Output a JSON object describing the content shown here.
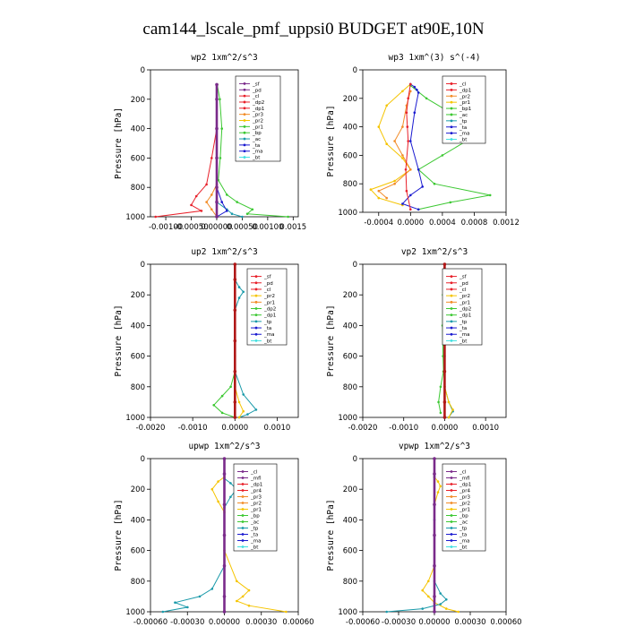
{
  "figure_title": "cam144_lscale_pmf_uppsi0  BUDGET at90E,10N",
  "colors": {
    "red": "#e8202a",
    "darkred": "#b01818",
    "purple": "#7a2a8a",
    "orange": "#f28c28",
    "yellow": "#f5c400",
    "green": "#3cc832",
    "blue": "#1a1ad0",
    "teal": "#1a9aaa",
    "cyan": "#40e0e0",
    "black": "#000000"
  },
  "chart_data": [
    {
      "type": "line",
      "title": "wp2   1xm^2/s^3",
      "ylabel": "Pressure [hPa]",
      "ylim": [
        1000,
        0
      ],
      "xlim": [
        -0.0013,
        0.0016
      ],
      "xticks": [
        -0.001,
        -0.0005,
        0.0,
        0.0005,
        0.001,
        0.0015
      ],
      "xtick_labels": [
        "-0.00100",
        "-0.00050",
        "0.00000",
        "0.00050",
        "0.00100",
        "0.0015"
      ],
      "yticks": [
        0,
        200,
        400,
        600,
        800,
        1000
      ],
      "legend": [
        "_sf",
        "_pd",
        "_cl",
        "_dp2",
        "_dp1",
        "_pr3",
        "_pr2",
        "_pr1",
        "_bp",
        "_ac",
        "_ta",
        "_ma",
        "_bt"
      ],
      "legend_colors": [
        "purple",
        "purple",
        "red",
        "red",
        "red",
        "orange",
        "yellow",
        "green",
        "green",
        "teal",
        "blue",
        "blue",
        "cyan"
      ],
      "series": [
        {
          "name": "_dp1",
          "color": "red",
          "x": [
            0,
            0,
            0,
            -0.0001,
            -0.0002,
            -0.0004,
            -0.0005,
            -0.0003,
            -0.0012
          ],
          "y": [
            100,
            200,
            400,
            600,
            780,
            860,
            920,
            960,
            1000
          ]
        },
        {
          "name": "_pr3",
          "color": "orange",
          "x": [
            0,
            0,
            0,
            0,
            0,
            -0.0001,
            -0.0002,
            -0.0001,
            0
          ],
          "y": [
            100,
            200,
            400,
            600,
            780,
            850,
            900,
            950,
            1000
          ]
        },
        {
          "name": "_pr1",
          "color": "green",
          "x": [
            1e-05,
            6e-05,
            0.0001,
            7e-05,
            3e-05,
            0.0002,
            0.0004,
            0.0007,
            0.0006,
            0.0014
          ],
          "y": [
            100,
            200,
            400,
            600,
            750,
            850,
            900,
            950,
            980,
            1000
          ]
        },
        {
          "name": "_ac",
          "color": "teal",
          "x": [
            0,
            0,
            0,
            0,
            0,
            0,
            0.0002,
            0.0003,
            0.0005
          ],
          "y": [
            100,
            200,
            400,
            600,
            800,
            900,
            950,
            980,
            1000
          ]
        },
        {
          "name": "_ta",
          "color": "blue",
          "x": [
            0,
            0,
            0,
            0,
            0,
            0.0001,
            0.0002,
            0
          ],
          "y": [
            100,
            200,
            400,
            600,
            800,
            900,
            960,
            1000
          ]
        },
        {
          "name": "_sf",
          "color": "purple",
          "x": [
            0,
            0,
            0,
            0,
            0,
            0,
            0
          ],
          "y": [
            100,
            200,
            400,
            600,
            800,
            900,
            1000
          ]
        }
      ]
    },
    {
      "type": "line",
      "title": "wp3   1xm^(3) s^(-4)",
      "ylabel": "Pressure [hPa]",
      "ylim": [
        1000,
        0
      ],
      "xlim": [
        -0.0006,
        0.0012
      ],
      "xticks": [
        -0.0004,
        0.0,
        0.0004,
        0.0008,
        0.0012
      ],
      "xtick_labels": [
        "-0.0004",
        "0.0000",
        "0.0004",
        "0.0008",
        "0.0012"
      ],
      "yticks": [
        0,
        200,
        400,
        600,
        800,
        1000
      ],
      "legend": [
        "_cl",
        "_dp1",
        "_pr2",
        "_pr1",
        "_bp1",
        "_ac",
        "_tp",
        "_ta",
        "_ma",
        "_bt"
      ],
      "legend_colors": [
        "red",
        "red",
        "orange",
        "yellow",
        "green",
        "green",
        "teal",
        "blue",
        "blue",
        "cyan"
      ],
      "series": [
        {
          "name": "_pr1",
          "color": "yellow",
          "x": [
            0,
            -0.0001,
            -0.0003,
            -0.0004,
            -0.0003,
            -0.0001,
            0,
            -0.0002,
            -0.0005,
            -0.0004,
            -0.0001
          ],
          "y": [
            100,
            150,
            250,
            400,
            520,
            620,
            700,
            780,
            840,
            900,
            950
          ]
        },
        {
          "name": "_pr2",
          "color": "orange",
          "x": [
            0,
            -5e-05,
            -0.0001,
            -0.0002,
            -0.0001,
            0,
            -0.0002,
            -0.0004,
            -0.0003
          ],
          "y": [
            150,
            250,
            400,
            500,
            600,
            700,
            800,
            850,
            900
          ]
        },
        {
          "name": "_ac",
          "color": "green",
          "x": [
            0,
            0.0002,
            0.0005,
            0.0009,
            0.0007,
            0.0004,
            0.0001,
            0.0003,
            0.001,
            0.0005,
            0.0001
          ],
          "y": [
            110,
            200,
            300,
            400,
            500,
            600,
            700,
            800,
            880,
            930,
            980
          ]
        },
        {
          "name": "_ta",
          "color": "blue",
          "x": [
            0,
            5e-05,
            8e-05,
            0.0001,
            5e-05,
            0,
            0.0001,
            0.00015,
            0,
            -0.0001,
            0.0001
          ],
          "y": [
            100,
            120,
            140,
            160,
            300,
            500,
            700,
            820,
            880,
            940,
            980
          ]
        },
        {
          "name": "_dp1",
          "color": "red",
          "x": [
            0,
            -3e-05,
            -5e-05,
            -4e-05,
            -3e-05,
            -6e-05,
            -5e-05,
            0
          ],
          "y": [
            100,
            200,
            300,
            400,
            500,
            700,
            850,
            980
          ]
        }
      ]
    },
    {
      "type": "line",
      "title": "up2   1xm^2/s^3",
      "ylabel": "Pressure [hPa]",
      "ylim": [
        1000,
        0
      ],
      "xlim": [
        -0.002,
        0.0015
      ],
      "xticks": [
        -0.002,
        -0.001,
        0.0,
        0.001
      ],
      "xtick_labels": [
        "-0.0020",
        "-0.0010",
        "0.0000",
        "0.0010"
      ],
      "yticks": [
        0,
        200,
        400,
        600,
        800,
        1000
      ],
      "legend": [
        "_sf",
        "_pd",
        "_cl",
        "_pr2",
        "_pr1",
        "_dp2",
        "_dp1",
        "_tp",
        "_ta",
        "_ma",
        "_bt"
      ],
      "legend_colors": [
        "red",
        "red",
        "red",
        "yellow",
        "orange",
        "green",
        "green",
        "teal",
        "blue",
        "blue",
        "cyan"
      ],
      "series": [
        {
          "name": "_dp2",
          "color": "green",
          "x": [
            0,
            0,
            0,
            0,
            -0.0001,
            -0.0003,
            -0.0005,
            -0.0003,
            0
          ],
          "y": [
            100,
            300,
            500,
            700,
            800,
            860,
            920,
            970,
            1000
          ]
        },
        {
          "name": "_ta",
          "color": "teal",
          "x": [
            0,
            0.0001,
            0.0002,
            0.0001,
            0,
            0,
            0.0002,
            0.0005,
            0.0003,
            0.0001
          ],
          "y": [
            100,
            150,
            180,
            220,
            300,
            700,
            850,
            950,
            980,
            1000
          ]
        },
        {
          "name": "_pr2",
          "color": "yellow",
          "x": [
            0,
            0,
            0,
            0,
            0.0001,
            0.0002,
            0.0001
          ],
          "y": [
            100,
            300,
            600,
            800,
            900,
            960,
            1000
          ]
        },
        {
          "name": "_sf",
          "color": "darkred",
          "x": [
            0,
            0,
            0,
            0,
            0,
            0,
            0
          ],
          "y": [
            0,
            100,
            300,
            500,
            700,
            900,
            1000
          ]
        }
      ]
    },
    {
      "type": "line",
      "title": "vp2   1xm^2/s^3",
      "ylabel": "Pressure [hPa]",
      "ylim": [
        1000,
        0
      ],
      "xlim": [
        -0.002,
        0.0015
      ],
      "xticks": [
        -0.002,
        -0.001,
        0.0,
        0.001
      ],
      "xtick_labels": [
        "-0.0020",
        "-0.0010",
        "0.0000",
        "0.0010"
      ],
      "yticks": [
        0,
        200,
        400,
        600,
        800,
        1000
      ],
      "legend": [
        "_sf",
        "_pd",
        "_cl",
        "_pr2",
        "_pr1",
        "_dp2",
        "_dp1",
        "_tp",
        "_ta",
        "_ma",
        "_bt"
      ],
      "legend_colors": [
        "red",
        "red",
        "red",
        "yellow",
        "orange",
        "green",
        "green",
        "teal",
        "blue",
        "blue",
        "cyan"
      ],
      "series": [
        {
          "name": "_dp2",
          "color": "green",
          "x": [
            -2e-05,
            -4e-05,
            -5e-05,
            -4e-05,
            -3e-05,
            -0.0001,
            -0.00015,
            -0.0001
          ],
          "y": [
            100,
            200,
            400,
            600,
            700,
            800,
            900,
            970
          ]
        },
        {
          "name": "_ta",
          "color": "teal",
          "x": [
            0,
            0,
            0,
            0,
            0.0001,
            0.0002,
            0.0001
          ],
          "y": [
            100,
            300,
            600,
            800,
            900,
            960,
            1000
          ]
        },
        {
          "name": "_pr2",
          "color": "yellow",
          "x": [
            0,
            0,
            0,
            0.0001,
            0.0002,
            0.0001
          ],
          "y": [
            100,
            400,
            800,
            900,
            950,
            1000
          ]
        },
        {
          "name": "_sf",
          "color": "darkred",
          "x": [
            0,
            0,
            0,
            0,
            0,
            0,
            0
          ],
          "y": [
            0,
            100,
            300,
            500,
            700,
            900,
            1000
          ]
        }
      ]
    },
    {
      "type": "line",
      "title": "upwp   1xm^2/s^3",
      "ylabel": "Pressure [hPa]",
      "ylim": [
        1000,
        0
      ],
      "xlim": [
        -0.0006,
        0.0006
      ],
      "xticks": [
        -0.0006,
        -0.0003,
        0.0,
        0.0003,
        0.0006
      ],
      "xtick_labels": [
        "-0.00060",
        "-0.00030",
        "0.00000",
        "0.00030",
        "0.00060"
      ],
      "yticks": [
        0,
        200,
        400,
        600,
        800,
        1000
      ],
      "legend": [
        "_cl",
        "_mfl",
        "_dp1",
        "_pr4",
        "_pr3",
        "_pr2",
        "_pr1",
        "_bp",
        "_ac",
        "_tp",
        "_ta",
        "_ma",
        "_bt"
      ],
      "legend_colors": [
        "purple",
        "purple",
        "red",
        "red",
        "orange",
        "orange",
        "yellow",
        "green",
        "green",
        "teal",
        "blue",
        "blue",
        "cyan"
      ],
      "series": [
        {
          "name": "_pr1",
          "color": "yellow",
          "x": [
            0,
            -5e-05,
            -0.0001,
            -5e-05,
            0,
            0,
            0.0001,
            0.0002,
            0.00015,
            0.0001,
            0.0002,
            0.0005
          ],
          "y": [
            120,
            150,
            200,
            280,
            350,
            600,
            800,
            860,
            900,
            930,
            960,
            1000
          ]
        },
        {
          "name": "_ta",
          "color": "teal",
          "x": [
            0,
            5e-05,
            0.0001,
            5e-05,
            0,
            0,
            -0.0001,
            -0.0002,
            -0.0004,
            -0.0003,
            -0.0005
          ],
          "y": [
            130,
            160,
            200,
            250,
            320,
            700,
            850,
            900,
            940,
            970,
            1000
          ]
        },
        {
          "name": "_mfl",
          "color": "purple",
          "x": [
            0,
            0,
            0,
            0,
            0,
            0,
            0
          ],
          "y": [
            0,
            100,
            300,
            500,
            700,
            900,
            1000
          ]
        }
      ]
    },
    {
      "type": "line",
      "title": "vpwp   1xm^2/s^3",
      "ylabel": "Pressure [hPa]",
      "ylim": [
        1000,
        0
      ],
      "xlim": [
        -0.0006,
        0.0006
      ],
      "xticks": [
        -0.0006,
        -0.0003,
        0.0,
        0.0003,
        0.0006
      ],
      "xtick_labels": [
        "-0.00060",
        "-0.00030",
        "0.00000",
        "0.00030",
        "0.00060"
      ],
      "yticks": [
        0,
        200,
        400,
        600,
        800,
        1000
      ],
      "legend": [
        "_cl",
        "_mfl",
        "_dp1",
        "_pr4",
        "_pr3",
        "_pr2",
        "_pr1",
        "_bp",
        "_ac",
        "_tp",
        "_ta",
        "_ma",
        "_bt"
      ],
      "legend_colors": [
        "purple",
        "purple",
        "red",
        "red",
        "orange",
        "orange",
        "yellow",
        "green",
        "green",
        "teal",
        "blue",
        "blue",
        "cyan"
      ],
      "series": [
        {
          "name": "_pr1",
          "color": "yellow",
          "x": [
            0,
            3e-05,
            5e-05,
            3e-05,
            0,
            0,
            -5e-05,
            -0.0001,
            -5e-05,
            0,
            0.0001,
            0.0002
          ],
          "y": [
            120,
            150,
            180,
            220,
            300,
            700,
            800,
            860,
            900,
            940,
            980,
            1000
          ]
        },
        {
          "name": "_ta",
          "color": "teal",
          "x": [
            0,
            0,
            0,
            5e-05,
            0.0001,
            5e-05,
            -0.0001,
            -0.0004
          ],
          "y": [
            120,
            400,
            800,
            880,
            920,
            950,
            980,
            1000
          ]
        },
        {
          "name": "_mfl",
          "color": "purple",
          "x": [
            0,
            0,
            0,
            0,
            0,
            0,
            0
          ],
          "y": [
            0,
            100,
            300,
            500,
            700,
            900,
            1000
          ]
        }
      ]
    }
  ]
}
